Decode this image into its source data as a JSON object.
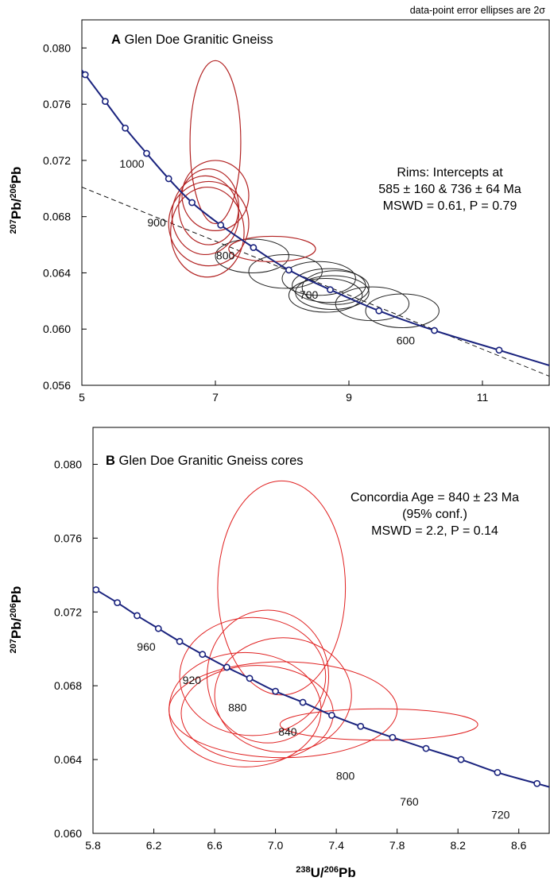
{
  "figure": {
    "note": "data-point error ellipses are 2σ",
    "x_axis_title_main": "U/",
    "x_axis_title_sup1": "238",
    "x_axis_title_sup2": "206",
    "x_axis_title_end": "Pb",
    "y_axis_title_sup1": "207",
    "y_axis_title_mid": "Pb/",
    "y_axis_title_sup2": "206",
    "y_axis_title_end": "Pb",
    "colors": {
      "concordia": "#1a237e",
      "rims": "#222222",
      "cores": "#e02020",
      "panel_a_red": "#b22222",
      "marker_fill": "#ffffff"
    }
  },
  "chart_data": [
    {
      "type": "scatter",
      "panel_letter": "A",
      "title": "Glen Doe Granitic Gneiss",
      "xlim": [
        5,
        12
      ],
      "ylim": [
        0.056,
        0.082
      ],
      "x_ticks": [
        5,
        7,
        9,
        11
      ],
      "x_tick_labels": [
        "5",
        "7",
        "9",
        "11"
      ],
      "y_ticks": [
        0.056,
        0.06,
        0.064,
        0.068,
        0.072,
        0.076,
        0.08
      ],
      "y_tick_labels": [
        "0.056",
        "0.060",
        "0.064",
        "0.068",
        "0.072",
        "0.076",
        "0.080"
      ],
      "annotation_lines": [
        "Rims: Intercepts at",
        "585 ± 160 & 736 ± 64 Ma",
        "MSWD = 0.61, P = 0.79"
      ],
      "concordia_points": [
        {
          "x": 5.05,
          "y": 0.0781
        },
        {
          "x": 5.35,
          "y": 0.0762
        },
        {
          "x": 5.65,
          "y": 0.0743
        },
        {
          "x": 5.97,
          "y": 0.0725
        },
        {
          "x": 6.3,
          "y": 0.0707
        },
        {
          "x": 6.65,
          "y": 0.069
        },
        {
          "x": 7.08,
          "y": 0.0674
        },
        {
          "x": 7.57,
          "y": 0.0658
        },
        {
          "x": 8.1,
          "y": 0.0642
        },
        {
          "x": 8.72,
          "y": 0.0628
        },
        {
          "x": 9.45,
          "y": 0.0613
        },
        {
          "x": 10.28,
          "y": 0.0599
        },
        {
          "x": 11.25,
          "y": 0.0585
        }
      ],
      "age_labels": [
        {
          "text": "1000",
          "x": 5.75,
          "y": 0.0715
        },
        {
          "text": "900",
          "x": 6.12,
          "y": 0.0673
        },
        {
          "text": "800",
          "x": 7.15,
          "y": 0.06495
        },
        {
          "text": "700",
          "x": 8.4,
          "y": 0.06215
        },
        {
          "text": "600",
          "x": 9.85,
          "y": 0.0589
        }
      ],
      "discordia_line": {
        "x1": 5.0,
        "y1": 0.0701,
        "x2": 12.0,
        "y2": 0.05665
      },
      "rim_ellipses": [
        {
          "cx": 7.55,
          "cy": 0.0652,
          "rx": 0.55,
          "ry": 0.0012
        },
        {
          "cx": 8.05,
          "cy": 0.0641,
          "rx": 0.55,
          "ry": 0.0012
        },
        {
          "cx": 8.55,
          "cy": 0.0636,
          "rx": 0.55,
          "ry": 0.0012
        },
        {
          "cx": 8.7,
          "cy": 0.0631,
          "rx": 0.55,
          "ry": 0.0012
        },
        {
          "cx": 8.8,
          "cy": 0.06295,
          "rx": 0.5,
          "ry": 0.0012
        },
        {
          "cx": 8.75,
          "cy": 0.0626,
          "rx": 0.55,
          "ry": 0.0012
        },
        {
          "cx": 8.65,
          "cy": 0.0624,
          "rx": 0.55,
          "ry": 0.0012
        },
        {
          "cx": 9.35,
          "cy": 0.0618,
          "rx": 0.55,
          "ry": 0.0012
        },
        {
          "cx": 9.8,
          "cy": 0.0613,
          "rx": 0.55,
          "ry": 0.0012
        }
      ],
      "red_ellipses": [
        {
          "cx": 7.0,
          "cy": 0.0733,
          "rx": 0.38,
          "ry": 0.0058
        },
        {
          "cx": 7.0,
          "cy": 0.0695,
          "rx": 0.5,
          "ry": 0.0025
        },
        {
          "cx": 6.9,
          "cy": 0.0687,
          "rx": 0.45,
          "ry": 0.0027
        },
        {
          "cx": 6.85,
          "cy": 0.0681,
          "rx": 0.5,
          "ry": 0.0028
        },
        {
          "cx": 6.9,
          "cy": 0.0675,
          "rx": 0.6,
          "ry": 0.003
        },
        {
          "cx": 6.88,
          "cy": 0.0669,
          "rx": 0.55,
          "ry": 0.0032
        },
        {
          "cx": 7.85,
          "cy": 0.0657,
          "rx": 0.65,
          "ry": 0.0009
        }
      ]
    },
    {
      "type": "scatter",
      "panel_letter": "B",
      "title": "Glen Doe Granitic Gneiss cores",
      "xlim": [
        5.8,
        8.8
      ],
      "ylim": [
        0.06,
        0.082
      ],
      "x_ticks": [
        5.8,
        6.2,
        6.6,
        7.0,
        7.4,
        7.8,
        8.2,
        8.6
      ],
      "x_tick_labels": [
        "5.8",
        "6.2",
        "6.6",
        "7.0",
        "7.4",
        "7.8",
        "8.2",
        "8.6"
      ],
      "y_ticks": [
        0.06,
        0.064,
        0.068,
        0.072,
        0.076,
        0.08
      ],
      "y_tick_labels": [
        "0.060",
        "0.064",
        "0.068",
        "0.072",
        "0.076",
        "0.080"
      ],
      "annotation_lines": [
        "Concordia Age = 840 ± 23 Ma",
        "(95% conf.)",
        "MSWD = 2.2, P = 0.14"
      ],
      "concordia_points": [
        {
          "x": 5.82,
          "y": 0.0732
        },
        {
          "x": 5.96,
          "y": 0.0725
        },
        {
          "x": 6.09,
          "y": 0.0718
        },
        {
          "x": 6.23,
          "y": 0.0711
        },
        {
          "x": 6.37,
          "y": 0.0704
        },
        {
          "x": 6.52,
          "y": 0.0697
        },
        {
          "x": 6.68,
          "y": 0.069
        },
        {
          "x": 6.83,
          "y": 0.0684
        },
        {
          "x": 7.0,
          "y": 0.0677
        },
        {
          "x": 7.18,
          "y": 0.0671
        },
        {
          "x": 7.37,
          "y": 0.0664
        },
        {
          "x": 7.56,
          "y": 0.0658
        },
        {
          "x": 7.77,
          "y": 0.0652
        },
        {
          "x": 7.99,
          "y": 0.0646
        },
        {
          "x": 8.22,
          "y": 0.064
        },
        {
          "x": 8.46,
          "y": 0.0633
        },
        {
          "x": 8.72,
          "y": 0.0627
        }
      ],
      "age_labels": [
        {
          "text": "960",
          "x": 6.15,
          "y": 0.0699
        },
        {
          "text": "920",
          "x": 6.45,
          "y": 0.0681
        },
        {
          "text": "880",
          "x": 6.75,
          "y": 0.0666
        },
        {
          "text": "840",
          "x": 7.08,
          "y": 0.0653
        },
        {
          "text": "800",
          "x": 7.46,
          "y": 0.0629
        },
        {
          "text": "760",
          "x": 7.88,
          "y": 0.0615
        },
        {
          "text": "720",
          "x": 8.48,
          "y": 0.0608
        }
      ],
      "ellipses": [
        {
          "cx": 7.04,
          "cy": 0.0733,
          "rx": 0.42,
          "ry": 0.0058
        },
        {
          "cx": 6.85,
          "cy": 0.0685,
          "rx": 0.48,
          "ry": 0.0032
        },
        {
          "cx": 6.95,
          "cy": 0.0685,
          "rx": 0.4,
          "ry": 0.0036
        },
        {
          "cx": 7.05,
          "cy": 0.0675,
          "rx": 0.45,
          "ry": 0.0031
        },
        {
          "cx": 6.8,
          "cy": 0.0667,
          "rx": 0.5,
          "ry": 0.0031
        },
        {
          "cx": 6.88,
          "cy": 0.0665,
          "rx": 0.5,
          "ry": 0.0026
        },
        {
          "cx": 7.05,
          "cy": 0.0667,
          "rx": 0.75,
          "ry": 0.0026
        },
        {
          "cx": 7.68,
          "cy": 0.0659,
          "rx": 0.65,
          "ry": 0.00085
        }
      ]
    }
  ]
}
